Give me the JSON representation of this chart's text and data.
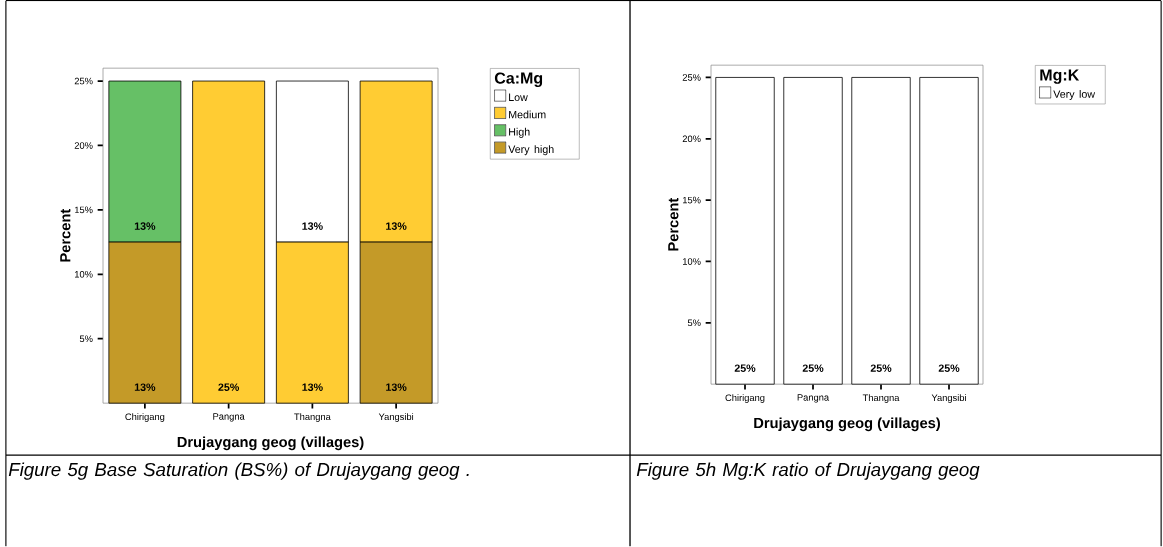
{
  "chart_data": [
    {
      "type": "bar",
      "stacked": true,
      "xlabel": "Drujaygang geog (villages)",
      "ylabel": "Percent",
      "legend_title": "Ca:Mg",
      "legend": "top right",
      "categories": [
        "Chirigang",
        "Pangna",
        "Thangna",
        "Yangsibi"
      ],
      "ylim": [
        0,
        26
      ],
      "yticks": [
        {
          "value": 5,
          "label": "5%"
        },
        {
          "value": 10,
          "label": "10%"
        },
        {
          "value": 15,
          "label": "15%"
        },
        {
          "value": 20,
          "label": "20%"
        },
        {
          "value": 25,
          "label": "25%"
        }
      ],
      "series": [
        {
          "name": "Very high",
          "color": "#c49a28",
          "values": [
            12.5,
            0,
            0,
            12.5
          ],
          "value_labels": [
            "13%",
            null,
            null,
            "13%"
          ]
        },
        {
          "name": "High",
          "color": "#66c066",
          "values": [
            12.5,
            0,
            0,
            0
          ],
          "value_labels": [
            "13%",
            null,
            null,
            null
          ]
        },
        {
          "name": "Medium",
          "color": "#ffcc33",
          "values": [
            0,
            25,
            12.5,
            12.5
          ],
          "value_labels": [
            null,
            "25%",
            "13%",
            "13%"
          ]
        },
        {
          "name": "Low",
          "color": "#ffffff",
          "values": [
            0,
            0,
            12.5,
            0
          ],
          "value_labels": [
            null,
            null,
            "13%",
            null
          ]
        }
      ],
      "annotations": [
        "Figure 5g Base Saturation (BS%) of Drujaygang geog ."
      ]
    },
    {
      "type": "bar",
      "xlabel": "Drujaygang geog (villages)",
      "ylabel": "Percent",
      "legend_title": "Mg:K",
      "legend": "top right",
      "categories": [
        "Chirigang",
        "Pangna",
        "Thangna",
        "Yangsibi"
      ],
      "ylim": [
        0,
        26
      ],
      "yticks": [
        {
          "value": 5,
          "label": "5%"
        },
        {
          "value": 10,
          "label": "10%"
        },
        {
          "value": 15,
          "label": "15%"
        },
        {
          "value": 20,
          "label": "20%"
        },
        {
          "value": 25,
          "label": "25%"
        }
      ],
      "series": [
        {
          "name": "Very low",
          "color": "#ffffff",
          "values": [
            25,
            25,
            25,
            25
          ],
          "value_labels": [
            "25%",
            "25%",
            "25%",
            "25%"
          ]
        }
      ],
      "annotations": [
        "Figure 5h  Mg:K ratio of Drujaygang geog"
      ]
    }
  ]
}
